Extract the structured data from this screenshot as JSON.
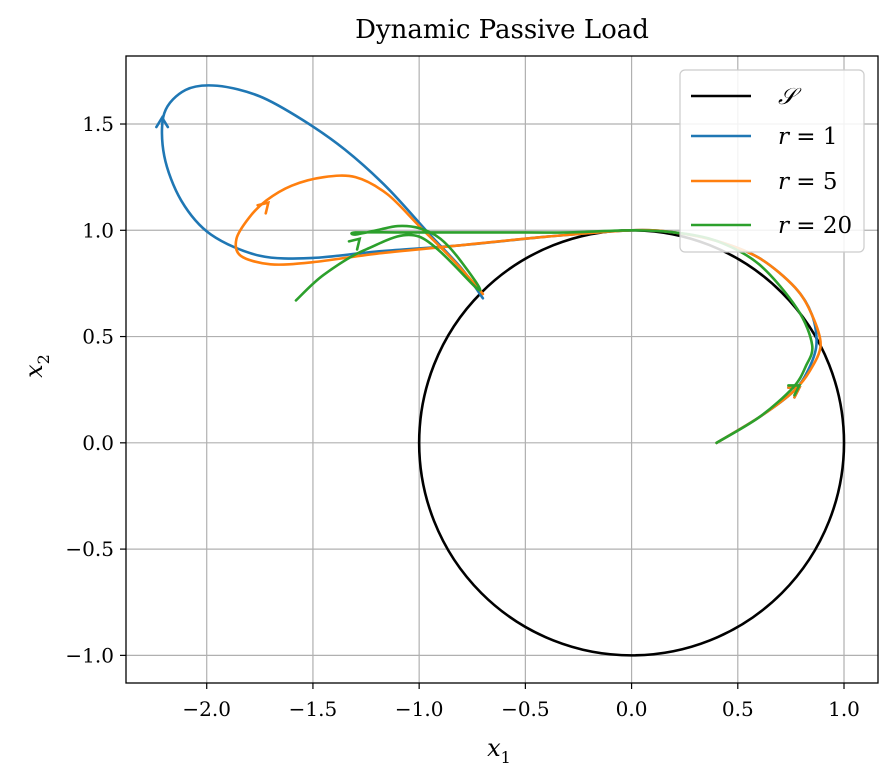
{
  "chart_data": {
    "type": "line",
    "title": "Dynamic Passive Load",
    "xlabel": "x",
    "xlabel_sub": "1",
    "ylabel": "x",
    "ylabel_sub": "2",
    "xlim": [
      -2.38,
      1.16
    ],
    "ylim": [
      -1.13,
      1.82
    ],
    "xticks": [
      -2.0,
      -1.5,
      -1.0,
      -0.5,
      0.0,
      0.5,
      1.0
    ],
    "xtick_labels": [
      "−2.0",
      "−1.5",
      "−1.0",
      "−0.5",
      "0.0",
      "0.5",
      "1.0"
    ],
    "yticks": [
      -1.0,
      -0.5,
      0.0,
      0.5,
      1.0,
      1.5
    ],
    "ytick_labels": [
      "−1.0",
      "−0.5",
      "0.0",
      "0.5",
      "1.0",
      "1.5"
    ],
    "grid": true,
    "legend_position": "top-right",
    "circle": {
      "name": "𝒮",
      "center": [
        0,
        0
      ],
      "radius": 1.0,
      "color": "#000000"
    },
    "series": [
      {
        "name": "r = 1",
        "name_var": "r",
        "name_value": "1",
        "color": "#1f77b4",
        "x": [
          0.4,
          0.6,
          0.76,
          0.83,
          0.87,
          0.85,
          0.77,
          0.6,
          0.4,
          0.2,
          0.0,
          -0.4,
          -0.8,
          -1.2,
          -1.5,
          -1.75,
          -1.98,
          -2.12,
          -2.2,
          -2.2,
          -2.1,
          -1.95,
          -1.75,
          -1.55,
          -1.35,
          -1.15,
          -0.95,
          -0.8,
          -0.7
        ],
        "y": [
          0.0,
          0.12,
          0.24,
          0.34,
          0.46,
          0.6,
          0.73,
          0.87,
          0.95,
          0.99,
          1.0,
          0.97,
          0.93,
          0.9,
          0.87,
          0.88,
          0.98,
          1.14,
          1.35,
          1.55,
          1.66,
          1.68,
          1.63,
          1.52,
          1.38,
          1.2,
          0.98,
          0.82,
          0.68
        ],
        "arrows": [
          [
            -2.21,
            1.53,
            "up"
          ],
          [
            0.79,
            0.26,
            "right"
          ]
        ]
      },
      {
        "name": "r = 5",
        "name_var": "r",
        "name_value": "5",
        "color": "#ff7f0e",
        "x": [
          0.4,
          0.6,
          0.76,
          0.84,
          0.89,
          0.85,
          0.77,
          0.6,
          0.4,
          0.2,
          0.0,
          -0.4,
          -0.8,
          -1.2,
          -1.5,
          -1.7,
          -1.84,
          -1.86,
          -1.8,
          -1.72,
          -1.6,
          -1.45,
          -1.3,
          -1.15,
          -1.0,
          -0.85,
          -0.75,
          -0.7
        ],
        "y": [
          0.0,
          0.12,
          0.24,
          0.34,
          0.46,
          0.6,
          0.73,
          0.87,
          0.95,
          0.99,
          1.0,
          0.97,
          0.93,
          0.89,
          0.85,
          0.84,
          0.88,
          0.96,
          1.06,
          1.14,
          1.21,
          1.25,
          1.25,
          1.17,
          1.02,
          0.87,
          0.76,
          0.7
        ],
        "arrows": [
          [
            -1.71,
            1.13,
            "up-right"
          ],
          [
            0.79,
            0.26,
            "right"
          ]
        ]
      },
      {
        "name": "r = 20",
        "name_var": "r",
        "name_value": "20",
        "color": "#2ca02c",
        "x": [
          0.4,
          0.6,
          0.76,
          0.82,
          0.85,
          0.78,
          0.6,
          0.4,
          0.2,
          0.0,
          -0.3,
          -0.6,
          -0.9,
          -1.1,
          -1.3,
          -1.3,
          -1.2,
          -1.1,
          -1.0,
          -0.9,
          -0.8,
          -0.72,
          -1.0,
          -1.25,
          -1.45,
          -1.58
        ],
        "y": [
          0.0,
          0.12,
          0.26,
          0.36,
          0.46,
          0.63,
          0.84,
          0.95,
          0.99,
          1.0,
          0.99,
          0.99,
          0.99,
          0.99,
          0.99,
          0.98,
          1.0,
          1.02,
          1.01,
          0.96,
          0.85,
          0.72,
          0.97,
          0.91,
          0.79,
          0.67
        ],
        "arrows": [
          [
            -1.28,
            0.96,
            "up-right"
          ],
          [
            0.79,
            0.27,
            "right"
          ]
        ]
      }
    ]
  }
}
